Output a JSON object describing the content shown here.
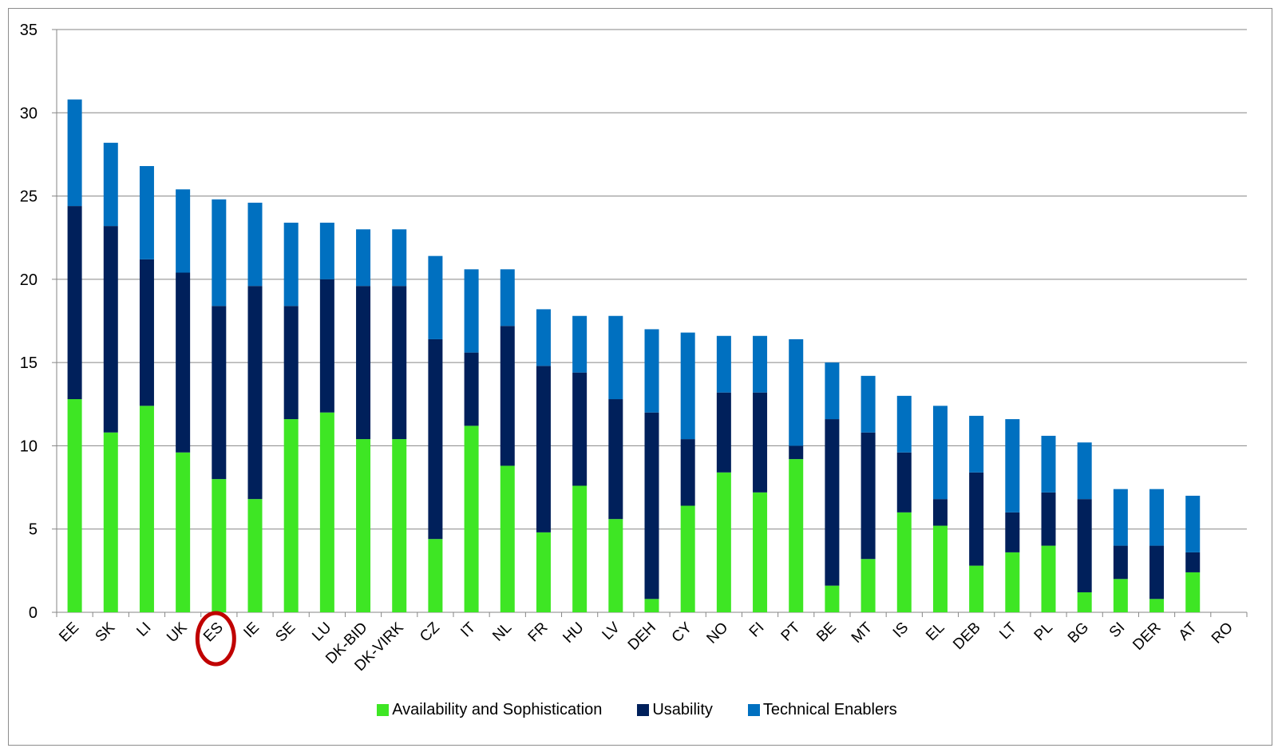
{
  "chart_data": {
    "type": "bar",
    "stacked": true,
    "categories": [
      "EE",
      "SK",
      "LI",
      "UK",
      "ES",
      "IE",
      "SE",
      "LU",
      "DK-BID",
      "DK-VIRK",
      "CZ",
      "IT",
      "NL",
      "FR",
      "HU",
      "LV",
      "DEH",
      "CY",
      "NO",
      "FI",
      "PT",
      "BE",
      "MT",
      "IS",
      "EL",
      "DEB",
      "LT",
      "PL",
      "BG",
      "SI",
      "DER",
      "AT",
      "RO"
    ],
    "series": [
      {
        "name": "Availability and  Sophistication",
        "color": "#3ee624",
        "values": [
          12.8,
          10.8,
          12.4,
          9.6,
          8.0,
          6.8,
          11.6,
          12.0,
          10.4,
          10.4,
          4.4,
          11.2,
          8.8,
          4.8,
          7.6,
          5.6,
          0.8,
          6.4,
          8.4,
          7.2,
          9.2,
          1.6,
          3.2,
          6.0,
          5.2,
          2.8,
          3.6,
          4.0,
          1.2,
          2.0,
          0.8,
          2.4,
          0
        ]
      },
      {
        "name": "Usability",
        "color": "#00205b",
        "values": [
          11.6,
          12.4,
          8.8,
          10.8,
          10.4,
          12.8,
          6.8,
          8.0,
          9.2,
          9.2,
          12.0,
          4.4,
          8.4,
          10.0,
          6.8,
          7.2,
          11.2,
          4.0,
          4.8,
          6.0,
          0.8,
          10.0,
          7.6,
          3.6,
          1.6,
          5.6,
          2.4,
          3.2,
          5.6,
          2.0,
          3.2,
          1.2,
          0
        ]
      },
      {
        "name": "Technical Enablers",
        "color": "#0070c0",
        "values": [
          6.4,
          5.0,
          5.6,
          5.0,
          6.4,
          5.0,
          5.0,
          3.4,
          3.4,
          3.4,
          5.0,
          5.0,
          3.4,
          3.4,
          3.4,
          5.0,
          5.0,
          6.4,
          3.4,
          3.4,
          6.4,
          3.4,
          3.4,
          3.4,
          5.6,
          3.4,
          5.6,
          3.4,
          3.4,
          3.4,
          3.4,
          3.4,
          0
        ]
      }
    ],
    "yticks": [
      "0",
      "5",
      "10",
      "15",
      "20",
      "25",
      "30",
      "35"
    ],
    "ylim": [
      0,
      35
    ],
    "grid": true,
    "legend": "bottom",
    "highlight": {
      "category": "ES",
      "color": "#c00000"
    }
  }
}
